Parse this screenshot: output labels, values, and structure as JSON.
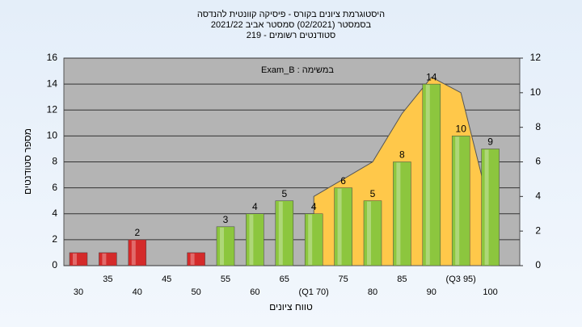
{
  "chart_data": {
    "type": "bar",
    "title": [
      "היסטוגרמת ציונים בקורס - פיסיקה קוונטית להנדסה",
      "בסמסטר (02/2021)  סמסטר אביב 2021/22",
      "סטודנטים רשומים - 219"
    ],
    "annotation": "Exam_B : במשימה",
    "x_label": "טווח ציונים",
    "y_label": "מספר סטודנטים",
    "categories": [
      "30",
      "35",
      "40",
      "45",
      "50",
      "55",
      "60",
      "65",
      "(Q1 70)",
      "75",
      "80",
      "85",
      "90",
      "(Q3 95)",
      "100"
    ],
    "values": [
      1,
      1,
      2,
      0,
      1,
      3,
      4,
      5,
      4,
      6,
      5,
      8,
      14,
      10,
      9
    ],
    "value_labels": [
      null,
      null,
      2,
      null,
      null,
      3,
      4,
      5,
      4,
      6,
      5,
      8,
      14,
      10,
      9
    ],
    "colors": [
      "#d42a2a",
      "#d42a2a",
      "#d42a2a",
      "#d42a2a",
      "#d42a2a",
      "#8cc63e",
      "#8cc63e",
      "#8cc63e",
      "#8cc63e",
      "#8cc63e",
      "#8cc63e",
      "#8cc63e",
      "#8cc63e",
      "#8cc63e",
      "#8cc63e"
    ],
    "area": {
      "axis": "y2",
      "color": "#ffc84a",
      "values": [
        null,
        null,
        null,
        null,
        null,
        null,
        null,
        null,
        4,
        5,
        6,
        8.8,
        10.9,
        10,
        3.2
      ]
    },
    "ylim": [
      0,
      16
    ],
    "yticks": [
      0,
      2,
      4,
      6,
      8,
      10,
      12,
      14,
      16
    ],
    "y2lim": [
      0,
      12
    ],
    "y2ticks": [
      0,
      2,
      4,
      6,
      8,
      10,
      12
    ],
    "grid": true
  }
}
